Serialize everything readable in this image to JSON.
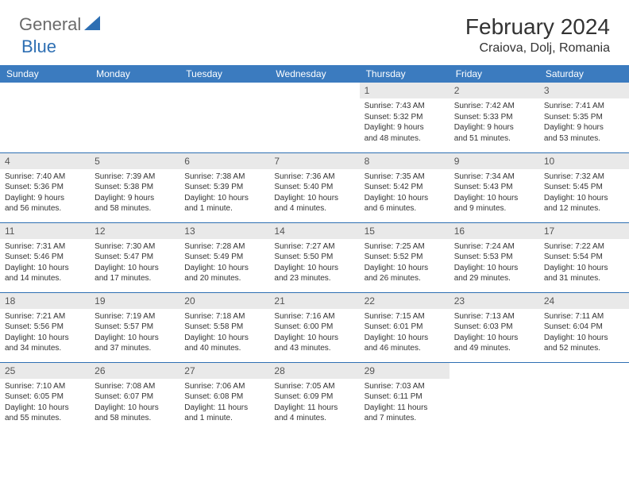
{
  "logo": {
    "text1": "General",
    "text2": "Blue"
  },
  "title": "February 2024",
  "location": "Craiova, Dolj, Romania",
  "colors": {
    "header_bg": "#3b7bbf",
    "accent": "#2e6fb3",
    "daybg": "#e9e9e9",
    "text": "#333333"
  },
  "weekdays": [
    "Sunday",
    "Monday",
    "Tuesday",
    "Wednesday",
    "Thursday",
    "Friday",
    "Saturday"
  ],
  "weeks": [
    [
      null,
      null,
      null,
      null,
      {
        "n": "1",
        "sr": "Sunrise: 7:43 AM",
        "ss": "Sunset: 5:32 PM",
        "d1": "Daylight: 9 hours",
        "d2": "and 48 minutes."
      },
      {
        "n": "2",
        "sr": "Sunrise: 7:42 AM",
        "ss": "Sunset: 5:33 PM",
        "d1": "Daylight: 9 hours",
        "d2": "and 51 minutes."
      },
      {
        "n": "3",
        "sr": "Sunrise: 7:41 AM",
        "ss": "Sunset: 5:35 PM",
        "d1": "Daylight: 9 hours",
        "d2": "and 53 minutes."
      }
    ],
    [
      {
        "n": "4",
        "sr": "Sunrise: 7:40 AM",
        "ss": "Sunset: 5:36 PM",
        "d1": "Daylight: 9 hours",
        "d2": "and 56 minutes."
      },
      {
        "n": "5",
        "sr": "Sunrise: 7:39 AM",
        "ss": "Sunset: 5:38 PM",
        "d1": "Daylight: 9 hours",
        "d2": "and 58 minutes."
      },
      {
        "n": "6",
        "sr": "Sunrise: 7:38 AM",
        "ss": "Sunset: 5:39 PM",
        "d1": "Daylight: 10 hours",
        "d2": "and 1 minute."
      },
      {
        "n": "7",
        "sr": "Sunrise: 7:36 AM",
        "ss": "Sunset: 5:40 PM",
        "d1": "Daylight: 10 hours",
        "d2": "and 4 minutes."
      },
      {
        "n": "8",
        "sr": "Sunrise: 7:35 AM",
        "ss": "Sunset: 5:42 PM",
        "d1": "Daylight: 10 hours",
        "d2": "and 6 minutes."
      },
      {
        "n": "9",
        "sr": "Sunrise: 7:34 AM",
        "ss": "Sunset: 5:43 PM",
        "d1": "Daylight: 10 hours",
        "d2": "and 9 minutes."
      },
      {
        "n": "10",
        "sr": "Sunrise: 7:32 AM",
        "ss": "Sunset: 5:45 PM",
        "d1": "Daylight: 10 hours",
        "d2": "and 12 minutes."
      }
    ],
    [
      {
        "n": "11",
        "sr": "Sunrise: 7:31 AM",
        "ss": "Sunset: 5:46 PM",
        "d1": "Daylight: 10 hours",
        "d2": "and 14 minutes."
      },
      {
        "n": "12",
        "sr": "Sunrise: 7:30 AM",
        "ss": "Sunset: 5:47 PM",
        "d1": "Daylight: 10 hours",
        "d2": "and 17 minutes."
      },
      {
        "n": "13",
        "sr": "Sunrise: 7:28 AM",
        "ss": "Sunset: 5:49 PM",
        "d1": "Daylight: 10 hours",
        "d2": "and 20 minutes."
      },
      {
        "n": "14",
        "sr": "Sunrise: 7:27 AM",
        "ss": "Sunset: 5:50 PM",
        "d1": "Daylight: 10 hours",
        "d2": "and 23 minutes."
      },
      {
        "n": "15",
        "sr": "Sunrise: 7:25 AM",
        "ss": "Sunset: 5:52 PM",
        "d1": "Daylight: 10 hours",
        "d2": "and 26 minutes."
      },
      {
        "n": "16",
        "sr": "Sunrise: 7:24 AM",
        "ss": "Sunset: 5:53 PM",
        "d1": "Daylight: 10 hours",
        "d2": "and 29 minutes."
      },
      {
        "n": "17",
        "sr": "Sunrise: 7:22 AM",
        "ss": "Sunset: 5:54 PM",
        "d1": "Daylight: 10 hours",
        "d2": "and 31 minutes."
      }
    ],
    [
      {
        "n": "18",
        "sr": "Sunrise: 7:21 AM",
        "ss": "Sunset: 5:56 PM",
        "d1": "Daylight: 10 hours",
        "d2": "and 34 minutes."
      },
      {
        "n": "19",
        "sr": "Sunrise: 7:19 AM",
        "ss": "Sunset: 5:57 PM",
        "d1": "Daylight: 10 hours",
        "d2": "and 37 minutes."
      },
      {
        "n": "20",
        "sr": "Sunrise: 7:18 AM",
        "ss": "Sunset: 5:58 PM",
        "d1": "Daylight: 10 hours",
        "d2": "and 40 minutes."
      },
      {
        "n": "21",
        "sr": "Sunrise: 7:16 AM",
        "ss": "Sunset: 6:00 PM",
        "d1": "Daylight: 10 hours",
        "d2": "and 43 minutes."
      },
      {
        "n": "22",
        "sr": "Sunrise: 7:15 AM",
        "ss": "Sunset: 6:01 PM",
        "d1": "Daylight: 10 hours",
        "d2": "and 46 minutes."
      },
      {
        "n": "23",
        "sr": "Sunrise: 7:13 AM",
        "ss": "Sunset: 6:03 PM",
        "d1": "Daylight: 10 hours",
        "d2": "and 49 minutes."
      },
      {
        "n": "24",
        "sr": "Sunrise: 7:11 AM",
        "ss": "Sunset: 6:04 PM",
        "d1": "Daylight: 10 hours",
        "d2": "and 52 minutes."
      }
    ],
    [
      {
        "n": "25",
        "sr": "Sunrise: 7:10 AM",
        "ss": "Sunset: 6:05 PM",
        "d1": "Daylight: 10 hours",
        "d2": "and 55 minutes."
      },
      {
        "n": "26",
        "sr": "Sunrise: 7:08 AM",
        "ss": "Sunset: 6:07 PM",
        "d1": "Daylight: 10 hours",
        "d2": "and 58 minutes."
      },
      {
        "n": "27",
        "sr": "Sunrise: 7:06 AM",
        "ss": "Sunset: 6:08 PM",
        "d1": "Daylight: 11 hours",
        "d2": "and 1 minute."
      },
      {
        "n": "28",
        "sr": "Sunrise: 7:05 AM",
        "ss": "Sunset: 6:09 PM",
        "d1": "Daylight: 11 hours",
        "d2": "and 4 minutes."
      },
      {
        "n": "29",
        "sr": "Sunrise: 7:03 AM",
        "ss": "Sunset: 6:11 PM",
        "d1": "Daylight: 11 hours",
        "d2": "and 7 minutes."
      },
      null,
      null
    ]
  ]
}
